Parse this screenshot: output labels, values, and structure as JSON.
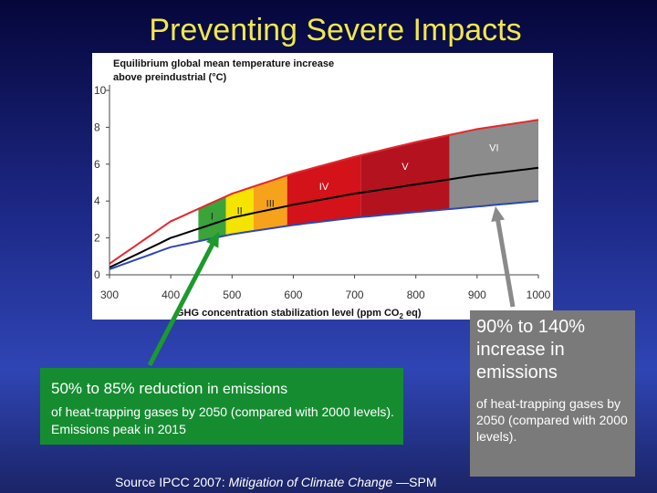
{
  "slide": {
    "title": "Preventing Severe Impacts"
  },
  "chart_data": {
    "type": "area",
    "title": "Equilibrium global mean temperature increase",
    "title_line2": "above preindustrial (°C)",
    "xlabel_main": "GHG concentration stabilization level (ppm CO",
    "xlabel_sub": "2",
    "xlabel_end": " eq)",
    "xlim": [
      300,
      1000
    ],
    "ylim": [
      0,
      10
    ],
    "x_ticks": [
      300,
      400,
      500,
      600,
      700,
      800,
      900,
      1000
    ],
    "y_ticks": [
      0,
      2,
      4,
      6,
      8,
      10
    ],
    "series": [
      {
        "key": "upper",
        "color": "#e2292e",
        "x": [
          300,
          400,
          500,
          600,
          700,
          800,
          900,
          1000
        ],
        "values": [
          0.6,
          2.9,
          4.4,
          5.5,
          6.4,
          7.2,
          7.9,
          8.4
        ]
      },
      {
        "key": "best",
        "color": "#000000",
        "x": [
          300,
          400,
          500,
          600,
          700,
          800,
          900,
          1000
        ],
        "values": [
          0.4,
          2.0,
          3.1,
          3.8,
          4.4,
          4.9,
          5.4,
          5.8
        ]
      },
      {
        "key": "lower",
        "color": "#2d48b2",
        "x": [
          300,
          400,
          500,
          600,
          700,
          800,
          900,
          1000
        ],
        "values": [
          0.3,
          1.5,
          2.2,
          2.7,
          3.1,
          3.4,
          3.7,
          4.0
        ]
      }
    ],
    "categories": [
      {
        "label": "I",
        "from": 445,
        "to": 490,
        "color": "#3aa33a"
      },
      {
        "label": "II",
        "from": 490,
        "to": 535,
        "color": "#f4e400"
      },
      {
        "label": "III",
        "from": 535,
        "to": 590,
        "color": "#f7a21b"
      },
      {
        "label": "IV",
        "from": 590,
        "to": 710,
        "color": "#d4121a"
      },
      {
        "label": "V",
        "from": 710,
        "to": 855,
        "color": "#b51220"
      },
      {
        "label": "VI",
        "from": 855,
        "to": 1000,
        "color": "#8c8c8c"
      }
    ],
    "category_label_y": [
      3.0,
      3.3,
      3.7,
      4.6,
      5.7,
      6.7
    ]
  },
  "callouts": {
    "green": {
      "headline_a": "50% to 85% reduction ",
      "headline_b": "in emissions",
      "detail": "of heat-trapping gases by 2050 (compared with 2000 levels). Emissions peak in 2015"
    },
    "gray": {
      "headline": "90% to 140% increase in emissions",
      "detail": "of heat-trapping gases by 2050 (compared with 2000 levels)."
    }
  },
  "source": {
    "prefix": "Source IPCC 2007: ",
    "title": "Mitigation of Climate Change",
    "suffix": " —SPM"
  },
  "colors": {
    "title": "#f1e84a",
    "arrow_green": "#1c9a2c",
    "arrow_gray": "#8a8a8a",
    "box_green": "#168c31",
    "box_gray": "#7a7a7a"
  }
}
